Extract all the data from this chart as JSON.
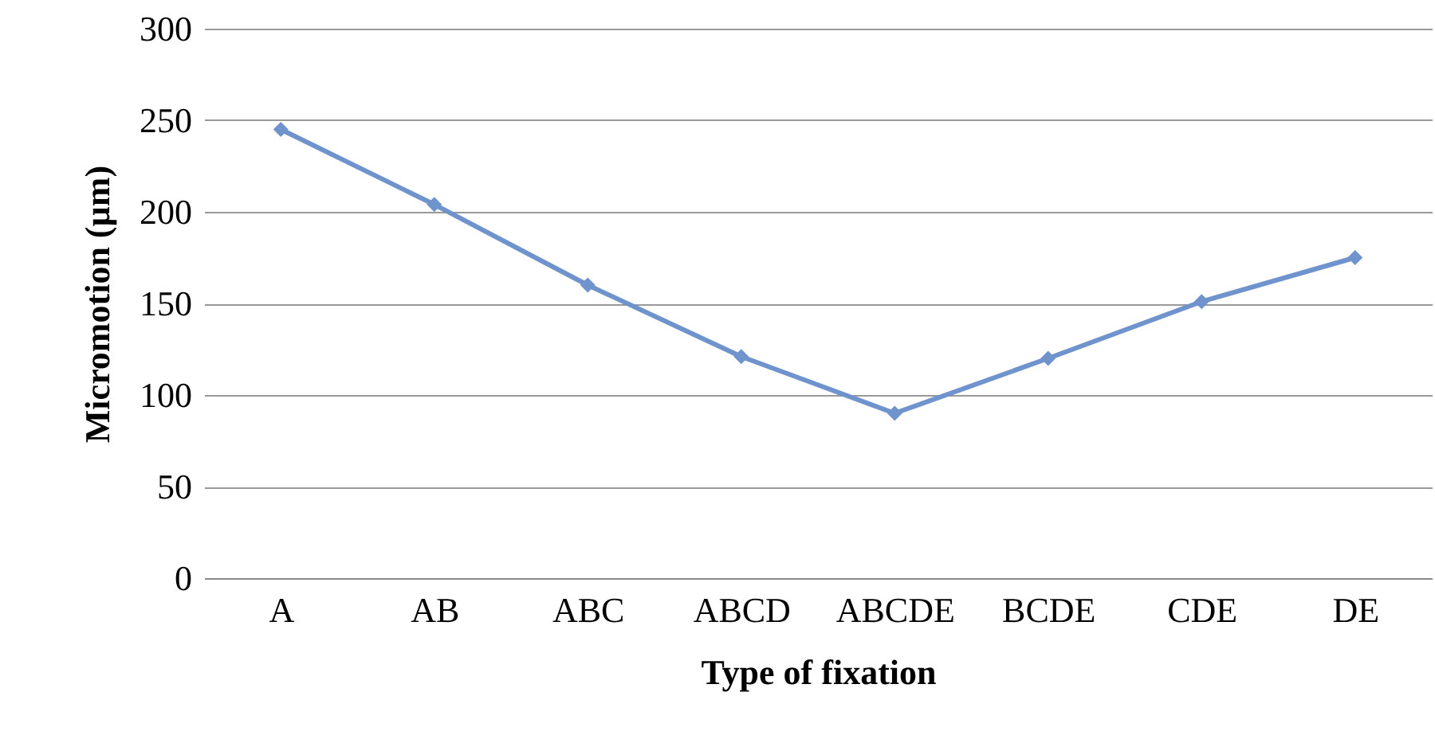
{
  "chart_data": {
    "type": "line",
    "xlabel": "Type of fixation",
    "ylabel": "Micromotion (µm)",
    "categories": [
      "A",
      "AB",
      "ABC",
      "ABCD",
      "ABCDE",
      "BCDE",
      "CDE",
      "DE"
    ],
    "values": [
      245,
      204,
      160,
      121,
      90,
      120,
      151,
      175
    ],
    "color": "#6f93cc",
    "ylim": [
      0,
      300
    ],
    "yticks": [
      0,
      50,
      100,
      150,
      200,
      250,
      300
    ],
    "grid": "y",
    "marker": "diamond",
    "line_style": "solid"
  }
}
